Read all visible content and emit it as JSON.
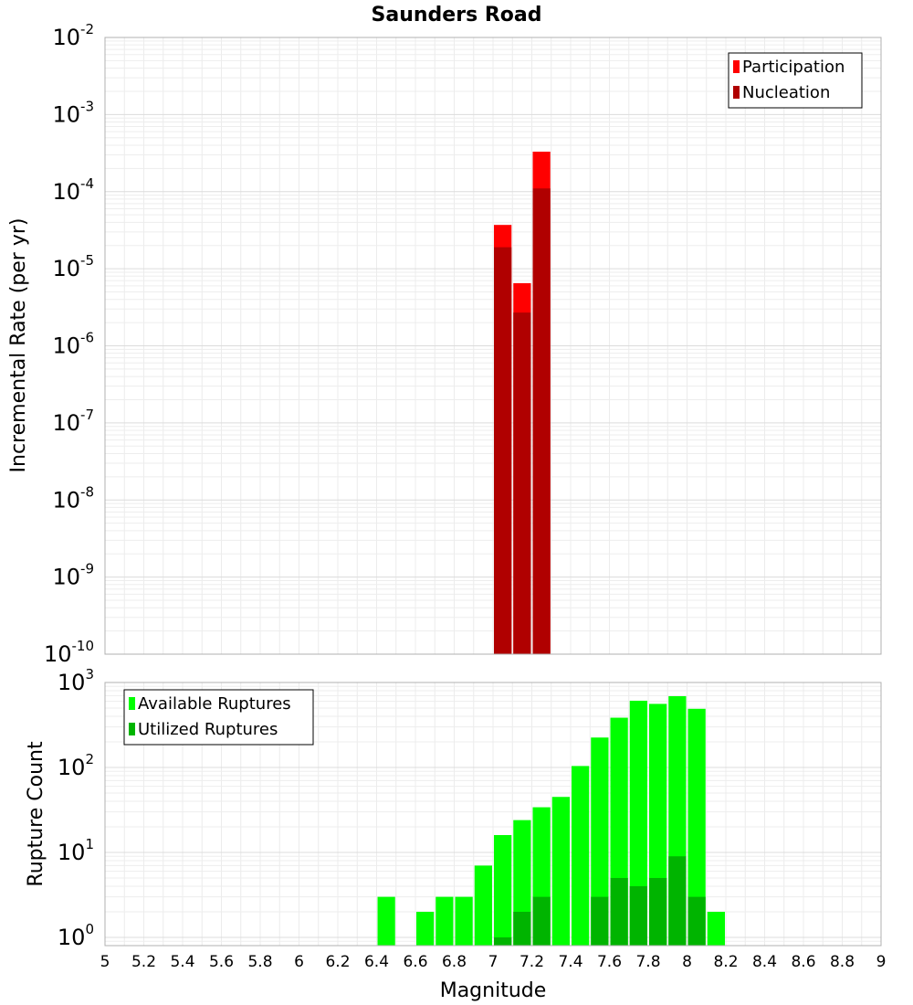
{
  "chart_data": [
    {
      "type": "bar",
      "title": "Saunders Road",
      "ylabel": "Incremental Rate (per yr)",
      "xlabel": "",
      "yscale": "log",
      "ylim": [
        1e-10,
        0.01
      ],
      "ytick_labels": [
        {
          "base": "10",
          "exp": "-10"
        },
        {
          "base": "10",
          "exp": "-9"
        },
        {
          "base": "10",
          "exp": "-8"
        },
        {
          "base": "10",
          "exp": "-7"
        },
        {
          "base": "10",
          "exp": "-6"
        },
        {
          "base": "10",
          "exp": "-5"
        },
        {
          "base": "10",
          "exp": "-4"
        },
        {
          "base": "10",
          "exp": "-3"
        },
        {
          "base": "10",
          "exp": "-2"
        }
      ],
      "xlim": [
        5,
        9
      ],
      "bin_width": 0.1,
      "grid": true,
      "legend": "top-right",
      "series": [
        {
          "name": "Participation",
          "color": "#ff0000",
          "x": [
            7.05,
            7.15,
            7.25
          ],
          "values": [
            3.7e-05,
            6.5e-06,
            0.00033
          ]
        },
        {
          "name": "Nucleation",
          "color": "#b00000",
          "x": [
            7.05,
            7.15,
            7.25
          ],
          "values": [
            1.9e-05,
            2.7e-06,
            0.00011
          ]
        }
      ]
    },
    {
      "type": "bar",
      "title": "",
      "ylabel": "Rupture Count",
      "xlabel": "Magnitude",
      "yscale": "log",
      "ylim": [
        0.8,
        1000
      ],
      "ytick_labels": [
        {
          "base": "10",
          "exp": "0"
        },
        {
          "base": "10",
          "exp": "1"
        },
        {
          "base": "10",
          "exp": "2"
        },
        {
          "base": "10",
          "exp": "3"
        }
      ],
      "xlim": [
        5,
        9
      ],
      "xticks": [
        "5",
        "5.2",
        "5.4",
        "5.6",
        "5.8",
        "6",
        "6.2",
        "6.4",
        "6.6",
        "6.8",
        "7",
        "7.2",
        "7.4",
        "7.6",
        "7.8",
        "8",
        "8.2",
        "8.4",
        "8.6",
        "8.8",
        "9"
      ],
      "bin_width": 0.1,
      "grid": true,
      "legend": "top-left",
      "series": [
        {
          "name": "Available Ruptures",
          "color": "#00ff00",
          "x": [
            6.45,
            6.65,
            6.75,
            6.85,
            6.95,
            7.05,
            7.15,
            7.25,
            7.35,
            7.45,
            7.55,
            7.65,
            7.75,
            7.85,
            7.95,
            8.05,
            8.15
          ],
          "values": [
            3,
            2,
            3,
            3,
            7,
            16,
            24,
            34,
            45,
            104,
            225,
            385,
            610,
            560,
            690,
            490,
            2
          ]
        },
        {
          "name": "Utilized Ruptures",
          "color": "#00b400",
          "x": [
            7.05,
            7.15,
            7.25,
            7.55,
            7.65,
            7.75,
            7.85,
            7.95,
            8.05
          ],
          "values": [
            1,
            2,
            3,
            3,
            5,
            4,
            5,
            9,
            3
          ]
        }
      ]
    }
  ]
}
